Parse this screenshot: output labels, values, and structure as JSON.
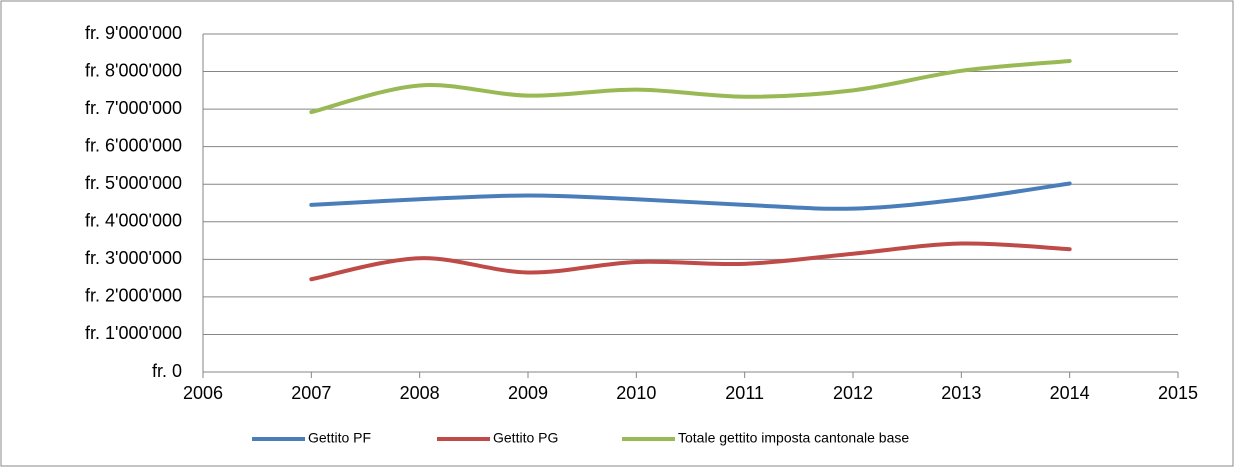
{
  "chart_data": {
    "type": "line",
    "x": [
      2007,
      2008,
      2009,
      2010,
      2011,
      2012,
      2013,
      2014
    ],
    "series": [
      {
        "name": "Gettito PF",
        "color": "#4a7ebb",
        "values": [
          4450000,
          4600000,
          4700000,
          4600000,
          4450000,
          4350000,
          4600000,
          5020000
        ]
      },
      {
        "name": "Gettito PG",
        "color": "#be4b48",
        "values": [
          2470000,
          3030000,
          2650000,
          2930000,
          2880000,
          3150000,
          3420000,
          3270000
        ]
      },
      {
        "name": "Totale gettito imposta cantonale base",
        "color": "#98b954",
        "values": [
          6920000,
          7630000,
          7360000,
          7520000,
          7330000,
          7500000,
          8020000,
          8280000
        ]
      }
    ],
    "xlim": [
      2006,
      2015
    ],
    "xticks": [
      2006,
      2007,
      2008,
      2009,
      2010,
      2011,
      2012,
      2013,
      2014,
      2015
    ],
    "ylim": [
      0,
      9000000
    ],
    "yticks": [
      {
        "value": 0,
        "label": "fr. 0"
      },
      {
        "value": 1000000,
        "label": "fr. 1'000'000"
      },
      {
        "value": 2000000,
        "label": "fr. 2'000'000"
      },
      {
        "value": 3000000,
        "label": "fr. 3'000'000"
      },
      {
        "value": 4000000,
        "label": "fr. 4'000'000"
      },
      {
        "value": 5000000,
        "label": "fr. 5'000'000"
      },
      {
        "value": 6000000,
        "label": "fr. 6'000'000"
      },
      {
        "value": 7000000,
        "label": "fr. 7'000'000"
      },
      {
        "value": 8000000,
        "label": "fr. 8'000'000"
      },
      {
        "value": 9000000,
        "label": "fr. 9'000'000"
      }
    ],
    "grid": true,
    "smooth": true,
    "legend": "bottom"
  }
}
